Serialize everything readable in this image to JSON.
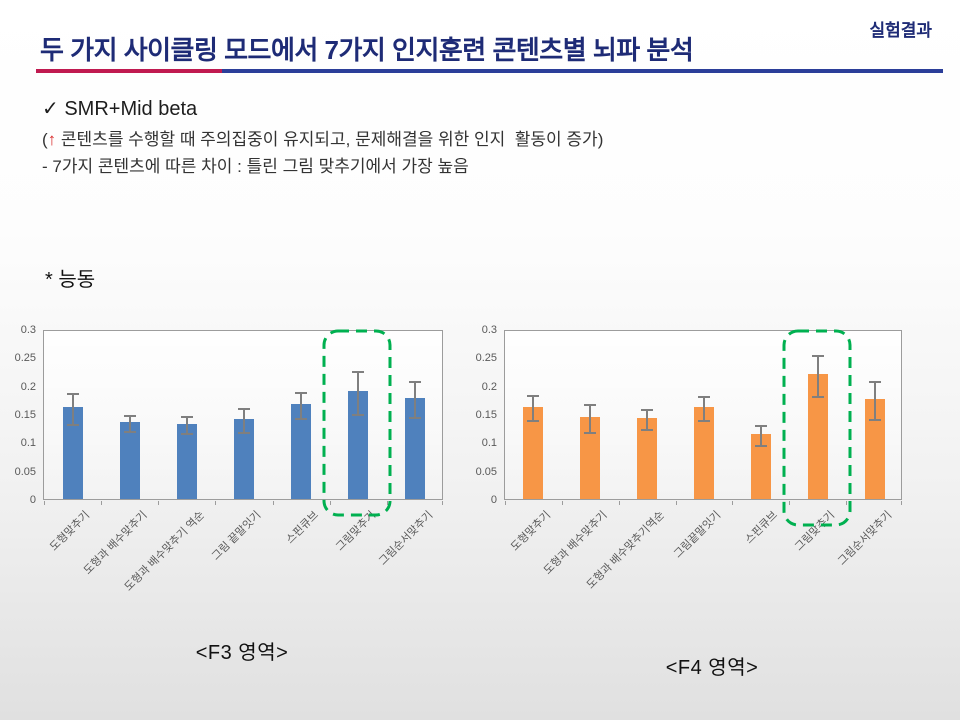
{
  "page": {
    "corner_tag": "실험결과"
  },
  "header": {
    "title": "두 가지 사이클링 모드에서 7가지 인지훈련 콘텐츠별 뇌파 분석"
  },
  "findings": {
    "check_icon": "✓",
    "heading": "SMR+Mid beta",
    "paren_open": "(",
    "up_arrow_icon": "↑",
    "line1_rest": " 콘텐츠를 수행할 때 주의집중이 유지되고, 문제해결을 위한 인지  활동이 증가)",
    "line2": "- 7가지 콘텐츠에 따른 차이 : 틀린 그림 맞추기에서 가장 높음",
    "mode_note": "* 능동"
  },
  "colors": {
    "title_navy": "#1E2B76",
    "rule_red": "#C01A50",
    "rule_blue": "#2B3E99",
    "f3_bar_blue": "#4F81BD",
    "f4_bar_orange": "#F79646",
    "highlight_green": "#00B050",
    "error_bar_gray": "#7F7F7F",
    "axis_text_gray": "#595959"
  },
  "chart_data": [
    {
      "type": "bar",
      "region": "F3",
      "title": "<F3 영역>",
      "categories": [
        "도형맞추기",
        "도형과 배수맞추기",
        "도형과 배수맞추기 역순",
        "그림 끝말잇기",
        "스핀큐브",
        "그림맞추기",
        "그림순서맞추기"
      ],
      "values": [
        0.162,
        0.136,
        0.133,
        0.142,
        0.168,
        0.19,
        0.178
      ],
      "errors": [
        0.029,
        0.016,
        0.017,
        0.023,
        0.025,
        0.04,
        0.034
      ],
      "ylim": [
        0,
        0.3
      ],
      "yticks": [
        0,
        0.05,
        0.1,
        0.15,
        0.2,
        0.25,
        0.3
      ],
      "xlabel": "",
      "ylabel": "",
      "grid": false,
      "legend": false,
      "bar_color": "#4F81BD",
      "error_color": "#7F7F7F",
      "highlight_color": "#00B050",
      "highlight_index": 5
    },
    {
      "type": "bar",
      "region": "F4",
      "title": "<F4 영역>",
      "categories": [
        "도형맞추기",
        "도형과 배수맞추기",
        "도형과 배수맞추기역순",
        "그림끝말잇기",
        "스핀큐브",
        "그림맞추기",
        "그림순서맞추기"
      ],
      "values": [
        0.163,
        0.145,
        0.143,
        0.163,
        0.115,
        0.22,
        0.176
      ],
      "errors": [
        0.024,
        0.027,
        0.02,
        0.023,
        0.02,
        0.038,
        0.035
      ],
      "ylim": [
        0,
        0.3
      ],
      "yticks": [
        0,
        0.05,
        0.1,
        0.15,
        0.2,
        0.25,
        0.3
      ],
      "xlabel": "",
      "ylabel": "",
      "grid": false,
      "legend": false,
      "bar_color": "#F79646",
      "error_color": "#7F7F7F",
      "highlight_color": "#00B050",
      "highlight_index": 5
    }
  ]
}
